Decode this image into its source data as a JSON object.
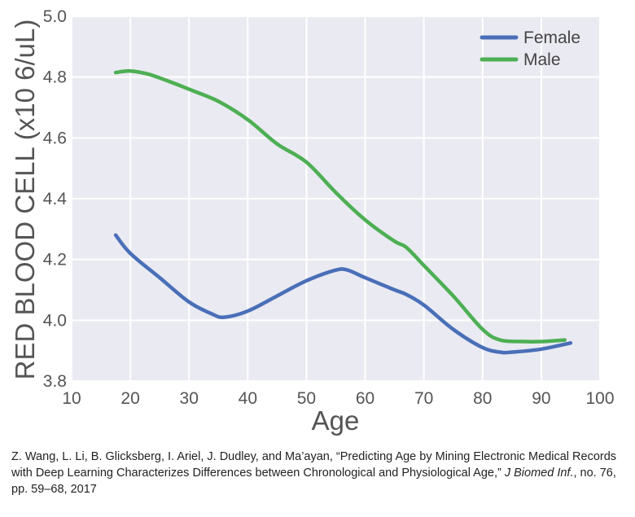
{
  "chart_data": {
    "type": "line",
    "title": "",
    "xlabel": "Age",
    "ylabel": "RED BLOOD CELL (x10 6/uL)",
    "xlim": [
      10,
      100
    ],
    "ylim": [
      3.8,
      5.0
    ],
    "xticks": [
      10,
      20,
      30,
      40,
      50,
      60,
      70,
      80,
      90,
      100
    ],
    "yticks": [
      3.8,
      4.0,
      4.2,
      4.4,
      4.6,
      4.8,
      5.0
    ],
    "grid": true,
    "legend_position": "top-right",
    "series": [
      {
        "name": "Female",
        "color": "#4a6fb8",
        "x": [
          17.5,
          20,
          25,
          30,
          34,
          36,
          40,
          45,
          50,
          55,
          57,
          60,
          65,
          67,
          70,
          75,
          80,
          83,
          85,
          90,
          95
        ],
        "y": [
          4.28,
          4.22,
          4.14,
          4.06,
          4.02,
          4.01,
          4.03,
          4.08,
          4.13,
          4.165,
          4.165,
          4.14,
          4.1,
          4.085,
          4.05,
          3.97,
          3.91,
          3.895,
          3.895,
          3.905,
          3.925
        ]
      },
      {
        "name": "Male",
        "color": "#4daf53",
        "x": [
          17.5,
          20,
          23,
          26,
          30,
          35,
          40,
          45,
          50,
          55,
          60,
          65,
          67,
          70,
          75,
          80,
          83,
          87,
          90,
          94
        ],
        "y": [
          4.815,
          4.82,
          4.81,
          4.79,
          4.76,
          4.72,
          4.66,
          4.58,
          4.52,
          4.42,
          4.33,
          4.26,
          4.24,
          4.18,
          4.08,
          3.97,
          3.935,
          3.93,
          3.93,
          3.935
        ]
      }
    ]
  },
  "citation": {
    "text_before": "Z. Wang, L. Li, B. Glicksberg, I. Ariel, J. Dudley, and Ma’ayan, “Predicting Age by Mining Electronic Medical Records with Deep Learning Characterizes Differences between Chronological and Physiological Age,” ",
    "journal": "J Biomed Inf.",
    "text_after": ", no. 76, pp. 59–68, 2017"
  }
}
